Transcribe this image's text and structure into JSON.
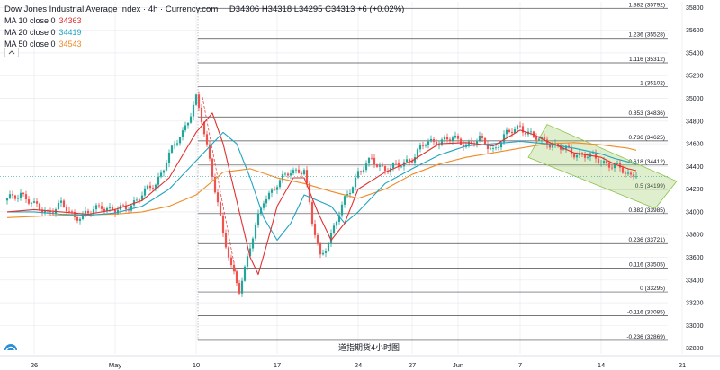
{
  "header": {
    "title": "Dow Jones Industrial Average Index · 4h · Currency.com",
    "ohlc": "D34306 H34318 L34295 C34313 +6 (+0.02%)",
    "ma": [
      {
        "label": "MA 10 close 0",
        "value": "34363",
        "color": "#e03030"
      },
      {
        "label": "MA 20 close 0",
        "value": "34419",
        "color": "#20a4c0"
      },
      {
        "label": "MA 50 close 0",
        "value": "34543",
        "color": "#f08a24"
      }
    ]
  },
  "watermark": "道指期货4小时图",
  "colors": {
    "up": "#26a69a",
    "down": "#ef5350",
    "grid": "#e6e8ee",
    "fib": "#4a4a4a",
    "channel": "#8bc34a"
  },
  "icons": {
    "collapse": "chevron-up-icon",
    "logo": "currency-logo-icon"
  },
  "chart_data": {
    "type": "candlestick",
    "ylim": [
      32750,
      35850
    ],
    "y_ticks": [
      "35800",
      "35600",
      "35400",
      "35200",
      "35000",
      "34800",
      "34600",
      "34400",
      "34200",
      "34000",
      "33800",
      "33600",
      "33400",
      "33200",
      "33000",
      "32800"
    ],
    "x_ticks": [
      {
        "label": "26",
        "x": 1.0
      },
      {
        "label": "May",
        "x": 4.0
      },
      {
        "label": "10",
        "x": 7.0
      },
      {
        "label": "17",
        "x": 10.0
      },
      {
        "label": "24",
        "x": 13.0
      },
      {
        "label": "27",
        "x": 15.0
      },
      {
        "label": "Jun",
        "x": 16.7
      },
      {
        "label": "7",
        "x": 19.0
      },
      {
        "label": "14",
        "x": 22.0
      },
      {
        "label": "21",
        "x": 25.0
      }
    ],
    "fib_levels": [
      {
        "label": "1.382 (35792)",
        "value": 35792
      },
      {
        "label": "1.236 (35528)",
        "value": 35528
      },
      {
        "label": "1.116 (35312)",
        "value": 35312
      },
      {
        "label": "1 (35102)",
        "value": 35102
      },
      {
        "label": "0.853 (34836)",
        "value": 34836
      },
      {
        "label": "0.736 (34625)",
        "value": 34625
      },
      {
        "label": "0.618 (34412)",
        "value": 34412
      },
      {
        "label": "0.5 (34199)",
        "value": 34199
      },
      {
        "label": "0.382 (33985)",
        "value": 33985
      },
      {
        "label": "0.236 (33721)",
        "value": 33721
      },
      {
        "label": "0.116 (33505)",
        "value": 33505
      },
      {
        "label": "0 (33295)",
        "value": 33295
      },
      {
        "label": "-0.116 (33085)",
        "value": 33085
      },
      {
        "label": "-0.236 (32869)",
        "value": 32869
      }
    ],
    "last_price": 34313,
    "close_path": [
      [
        0.0,
        34100
      ],
      [
        0.5,
        34170
      ],
      [
        1.0,
        34050
      ],
      [
        1.5,
        34000
      ],
      [
        2.0,
        34060
      ],
      [
        2.5,
        33960
      ],
      [
        3.0,
        33980
      ],
      [
        3.5,
        34060
      ],
      [
        4.0,
        34000
      ],
      [
        4.5,
        34050
      ],
      [
        5.0,
        34150
      ],
      [
        5.5,
        34250
      ],
      [
        6.0,
        34500
      ],
      [
        6.5,
        34700
      ],
      [
        7.0,
        35000
      ],
      [
        7.2,
        34800
      ],
      [
        7.5,
        34450
      ],
      [
        7.8,
        34100
      ],
      [
        8.0,
        33800
      ],
      [
        8.3,
        33500
      ],
      [
        8.6,
        33320
      ],
      [
        9.0,
        33700
      ],
      [
        9.5,
        34100
      ],
      [
        10.0,
        34250
      ],
      [
        10.5,
        34350
      ],
      [
        11.0,
        34380
      ],
      [
        11.3,
        33900
      ],
      [
        11.6,
        33600
      ],
      [
        12.0,
        33800
      ],
      [
        12.5,
        34100
      ],
      [
        13.0,
        34350
      ],
      [
        13.5,
        34450
      ],
      [
        14.0,
        34380
      ],
      [
        14.5,
        34400
      ],
      [
        15.0,
        34480
      ],
      [
        15.5,
        34600
      ],
      [
        16.0,
        34630
      ],
      [
        16.5,
        34640
      ],
      [
        17.0,
        34600
      ],
      [
        17.5,
        34630
      ],
      [
        18.0,
        34550
      ],
      [
        18.5,
        34680
      ],
      [
        19.0,
        34760
      ],
      [
        19.5,
        34650
      ],
      [
        20.0,
        34620
      ],
      [
        20.5,
        34560
      ],
      [
        21.0,
        34520
      ],
      [
        21.5,
        34490
      ],
      [
        22.0,
        34450
      ],
      [
        22.5,
        34400
      ],
      [
        23.0,
        34330
      ],
      [
        23.3,
        34313
      ]
    ],
    "ma10": [
      [
        0.0,
        34000
      ],
      [
        1.0,
        34020
      ],
      [
        2.0,
        34000
      ],
      [
        3.0,
        33980
      ],
      [
        4.0,
        34020
      ],
      [
        5.0,
        34100
      ],
      [
        6.0,
        34300
      ],
      [
        7.0,
        34700
      ],
      [
        7.6,
        34870
      ],
      [
        8.0,
        34600
      ],
      [
        8.6,
        34000
      ],
      [
        9.0,
        33600
      ],
      [
        9.3,
        33450
      ],
      [
        9.6,
        33700
      ],
      [
        10.0,
        34050
      ],
      [
        10.6,
        34300
      ],
      [
        11.0,
        34300
      ],
      [
        11.5,
        34000
      ],
      [
        12.0,
        33750
      ],
      [
        12.5,
        33900
      ],
      [
        13.0,
        34200
      ],
      [
        14.0,
        34350
      ],
      [
        15.0,
        34450
      ],
      [
        16.0,
        34600
      ],
      [
        17.0,
        34610
      ],
      [
        18.0,
        34580
      ],
      [
        19.0,
        34720
      ],
      [
        19.5,
        34680
      ],
      [
        20.0,
        34620
      ],
      [
        21.0,
        34520
      ],
      [
        22.0,
        34480
      ],
      [
        22.5,
        34420
      ],
      [
        23.0,
        34380
      ],
      [
        23.3,
        34363
      ]
    ],
    "ma20": [
      [
        0.0,
        34000
      ],
      [
        1.0,
        34000
      ],
      [
        2.0,
        33980
      ],
      [
        3.0,
        33970
      ],
      [
        4.0,
        33990
      ],
      [
        5.0,
        34050
      ],
      [
        6.0,
        34200
      ],
      [
        7.0,
        34450
      ],
      [
        8.0,
        34700
      ],
      [
        8.5,
        34600
      ],
      [
        9.0,
        34300
      ],
      [
        9.5,
        33950
      ],
      [
        10.0,
        33750
      ],
      [
        10.5,
        33900
      ],
      [
        11.0,
        34150
      ],
      [
        12.0,
        34050
      ],
      [
        12.5,
        33900
      ],
      [
        13.0,
        34000
      ],
      [
        14.0,
        34250
      ],
      [
        15.0,
        34380
      ],
      [
        16.0,
        34500
      ],
      [
        17.0,
        34580
      ],
      [
        18.0,
        34600
      ],
      [
        19.0,
        34620
      ],
      [
        20.0,
        34600
      ],
      [
        21.0,
        34560
      ],
      [
        22.0,
        34510
      ],
      [
        22.5,
        34470
      ],
      [
        23.0,
        34440
      ],
      [
        23.3,
        34419
      ]
    ],
    "ma50": [
      [
        0.0,
        33950
      ],
      [
        2.0,
        33970
      ],
      [
        4.0,
        33980
      ],
      [
        5.0,
        34000
      ],
      [
        6.0,
        34050
      ],
      [
        7.0,
        34150
      ],
      [
        8.0,
        34350
      ],
      [
        9.0,
        34380
      ],
      [
        10.0,
        34300
      ],
      [
        11.0,
        34250
      ],
      [
        12.0,
        34180
      ],
      [
        13.0,
        34120
      ],
      [
        14.0,
        34200
      ],
      [
        15.0,
        34330
      ],
      [
        16.0,
        34420
      ],
      [
        17.0,
        34480
      ],
      [
        18.0,
        34520
      ],
      [
        19.0,
        34560
      ],
      [
        20.0,
        34600
      ],
      [
        21.0,
        34610
      ],
      [
        22.0,
        34590
      ],
      [
        23.0,
        34560
      ],
      [
        23.3,
        34543
      ]
    ],
    "channel": [
      [
        20.0,
        34770
      ],
      [
        24.8,
        34270
      ],
      [
        24.0,
        34030
      ],
      [
        19.3,
        34480
      ]
    ],
    "wave_lines": [
      [
        [
          7.2,
          35050
        ],
        [
          8.6,
          33300
        ]
      ]
    ]
  }
}
